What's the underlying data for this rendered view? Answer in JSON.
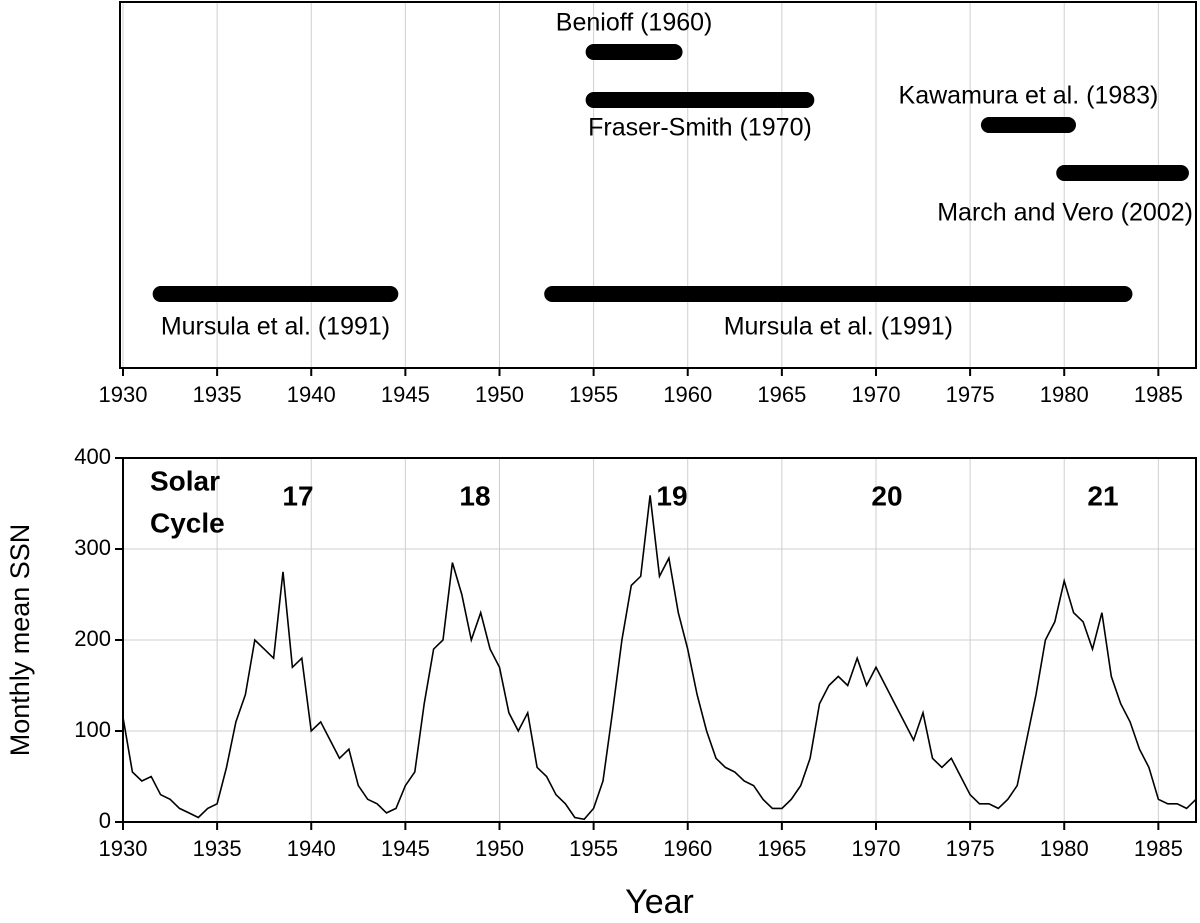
{
  "chart_data": [
    {
      "type": "range",
      "bars": [
        {
          "label": "Benioff (1960)",
          "start": 1955,
          "end": 1959.3
        },
        {
          "label": "Fraser-Smith (1970)",
          "start": 1955,
          "end": 1966.3
        },
        {
          "label": "Kawamura et al. (1983)",
          "start": 1976,
          "end": 1980.2
        },
        {
          "label": "March and Vero (2002)",
          "start": 1980,
          "end": 1986.2
        },
        {
          "label": "Mursula et al. (1991)",
          "start": 1932,
          "end": 1944.2
        },
        {
          "label": "Mursula et al. (1991)",
          "start": 1952.8,
          "end": 1983.2
        }
      ],
      "color": "#000000",
      "xlim": [
        1930,
        1987
      ],
      "xticks": [
        1930,
        1935,
        1940,
        1945,
        1950,
        1955,
        1960,
        1965,
        1970,
        1975,
        1980,
        1985
      ],
      "grid": true
    },
    {
      "type": "line",
      "x_label": "Year",
      "y_label": "Monthly mean SSN",
      "annotation": [
        "Solar",
        "Cycle"
      ],
      "cycles": [
        "17",
        "18",
        "19",
        "20",
        "21"
      ],
      "x": [
        1930.0,
        1930.5,
        1931.0,
        1931.5,
        1932.0,
        1932.5,
        1933.0,
        1933.5,
        1934.0,
        1934.5,
        1935.0,
        1935.5,
        1936.0,
        1936.5,
        1937.0,
        1937.5,
        1938.0,
        1938.5,
        1939.0,
        1939.5,
        1940.0,
        1940.5,
        1941.0,
        1941.5,
        1942.0,
        1942.5,
        1943.0,
        1943.5,
        1944.0,
        1944.5,
        1945.0,
        1945.5,
        1946.0,
        1946.5,
        1947.0,
        1947.5,
        1948.0,
        1948.5,
        1949.0,
        1949.5,
        1950.0,
        1950.5,
        1951.0,
        1951.5,
        1952.0,
        1952.5,
        1953.0,
        1953.5,
        1954.0,
        1954.5,
        1955.0,
        1955.5,
        1956.0,
        1956.5,
        1957.0,
        1957.5,
        1958.0,
        1958.5,
        1959.0,
        1959.5,
        1960.0,
        1960.5,
        1961.0,
        1961.5,
        1962.0,
        1962.5,
        1963.0,
        1963.5,
        1964.0,
        1964.5,
        1965.0,
        1965.5,
        1966.0,
        1966.5,
        1967.0,
        1967.5,
        1968.0,
        1968.5,
        1969.0,
        1969.5,
        1970.0,
        1970.5,
        1971.0,
        1971.5,
        1972.0,
        1972.5,
        1973.0,
        1973.5,
        1974.0,
        1974.5,
        1975.0,
        1975.5,
        1976.0,
        1976.5,
        1977.0,
        1977.5,
        1978.0,
        1978.5,
        1979.0,
        1979.5,
        1980.0,
        1980.5,
        1981.0,
        1981.5,
        1982.0,
        1982.5,
        1983.0,
        1983.5,
        1984.0,
        1984.5,
        1985.0,
        1985.5,
        1986.0,
        1986.5,
        1987.0
      ],
      "values": [
        115,
        55,
        45,
        50,
        30,
        25,
        15,
        10,
        5,
        15,
        20,
        60,
        110,
        140,
        200,
        190,
        180,
        275,
        170,
        180,
        100,
        110,
        90,
        70,
        80,
        40,
        25,
        20,
        10,
        15,
        40,
        55,
        130,
        190,
        200,
        285,
        250,
        200,
        230,
        190,
        170,
        120,
        100,
        120,
        60,
        50,
        30,
        20,
        5,
        3,
        15,
        45,
        120,
        200,
        260,
        270,
        359,
        270,
        290,
        230,
        190,
        140,
        100,
        70,
        60,
        55,
        45,
        40,
        25,
        15,
        15,
        25,
        40,
        70,
        130,
        150,
        160,
        150,
        180,
        150,
        170,
        150,
        130,
        110,
        90,
        120,
        70,
        60,
        70,
        50,
        30,
        20,
        20,
        15,
        25,
        40,
        90,
        140,
        200,
        220,
        265,
        230,
        220,
        190,
        230,
        160,
        130,
        110,
        80,
        60,
        25,
        20,
        20,
        15,
        25
      ],
      "color": "#000000",
      "xlim": [
        1930,
        1987
      ],
      "ylim": [
        0,
        400
      ],
      "xticks": [
        1930,
        1935,
        1940,
        1945,
        1950,
        1955,
        1960,
        1965,
        1970,
        1975,
        1980,
        1985
      ],
      "yticks": [
        0,
        100,
        200,
        300,
        400
      ],
      "grid": true
    }
  ]
}
